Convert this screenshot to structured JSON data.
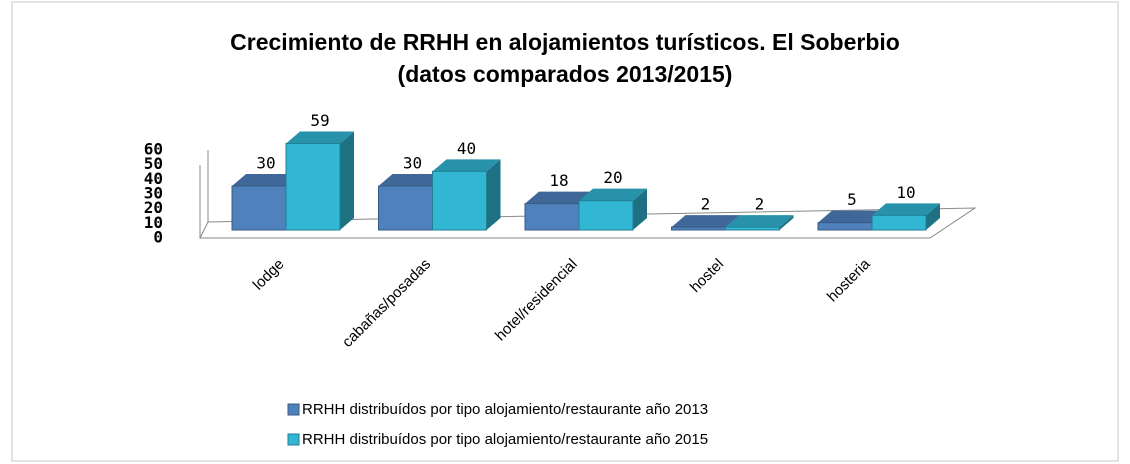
{
  "chart_data": {
    "type": "bar3d",
    "title": "Crecimiento de RRHH en alojamientos turísticos. El Soberbio",
    "subtitle": "(datos comparados  2013/2015)",
    "categories": [
      "lodge",
      "cabañas/posadas",
      "hotel/residencial",
      "hostel",
      "hosteria"
    ],
    "series": [
      {
        "name": "RRHH distribuídos por tipo alojamiento/restaurante año 2013",
        "color": "#4f81bd",
        "values": [
          30,
          30,
          18,
          2,
          5
        ]
      },
      {
        "name": "RRHH distribuídos por tipo alojamiento/restaurante año 2015",
        "color": "#31b6d3",
        "values": [
          59,
          40,
          20,
          2,
          10
        ]
      }
    ],
    "ylim": [
      0,
      60
    ],
    "yticks": [
      0,
      10,
      20,
      30,
      40,
      50,
      60
    ],
    "legend": "bottom"
  }
}
